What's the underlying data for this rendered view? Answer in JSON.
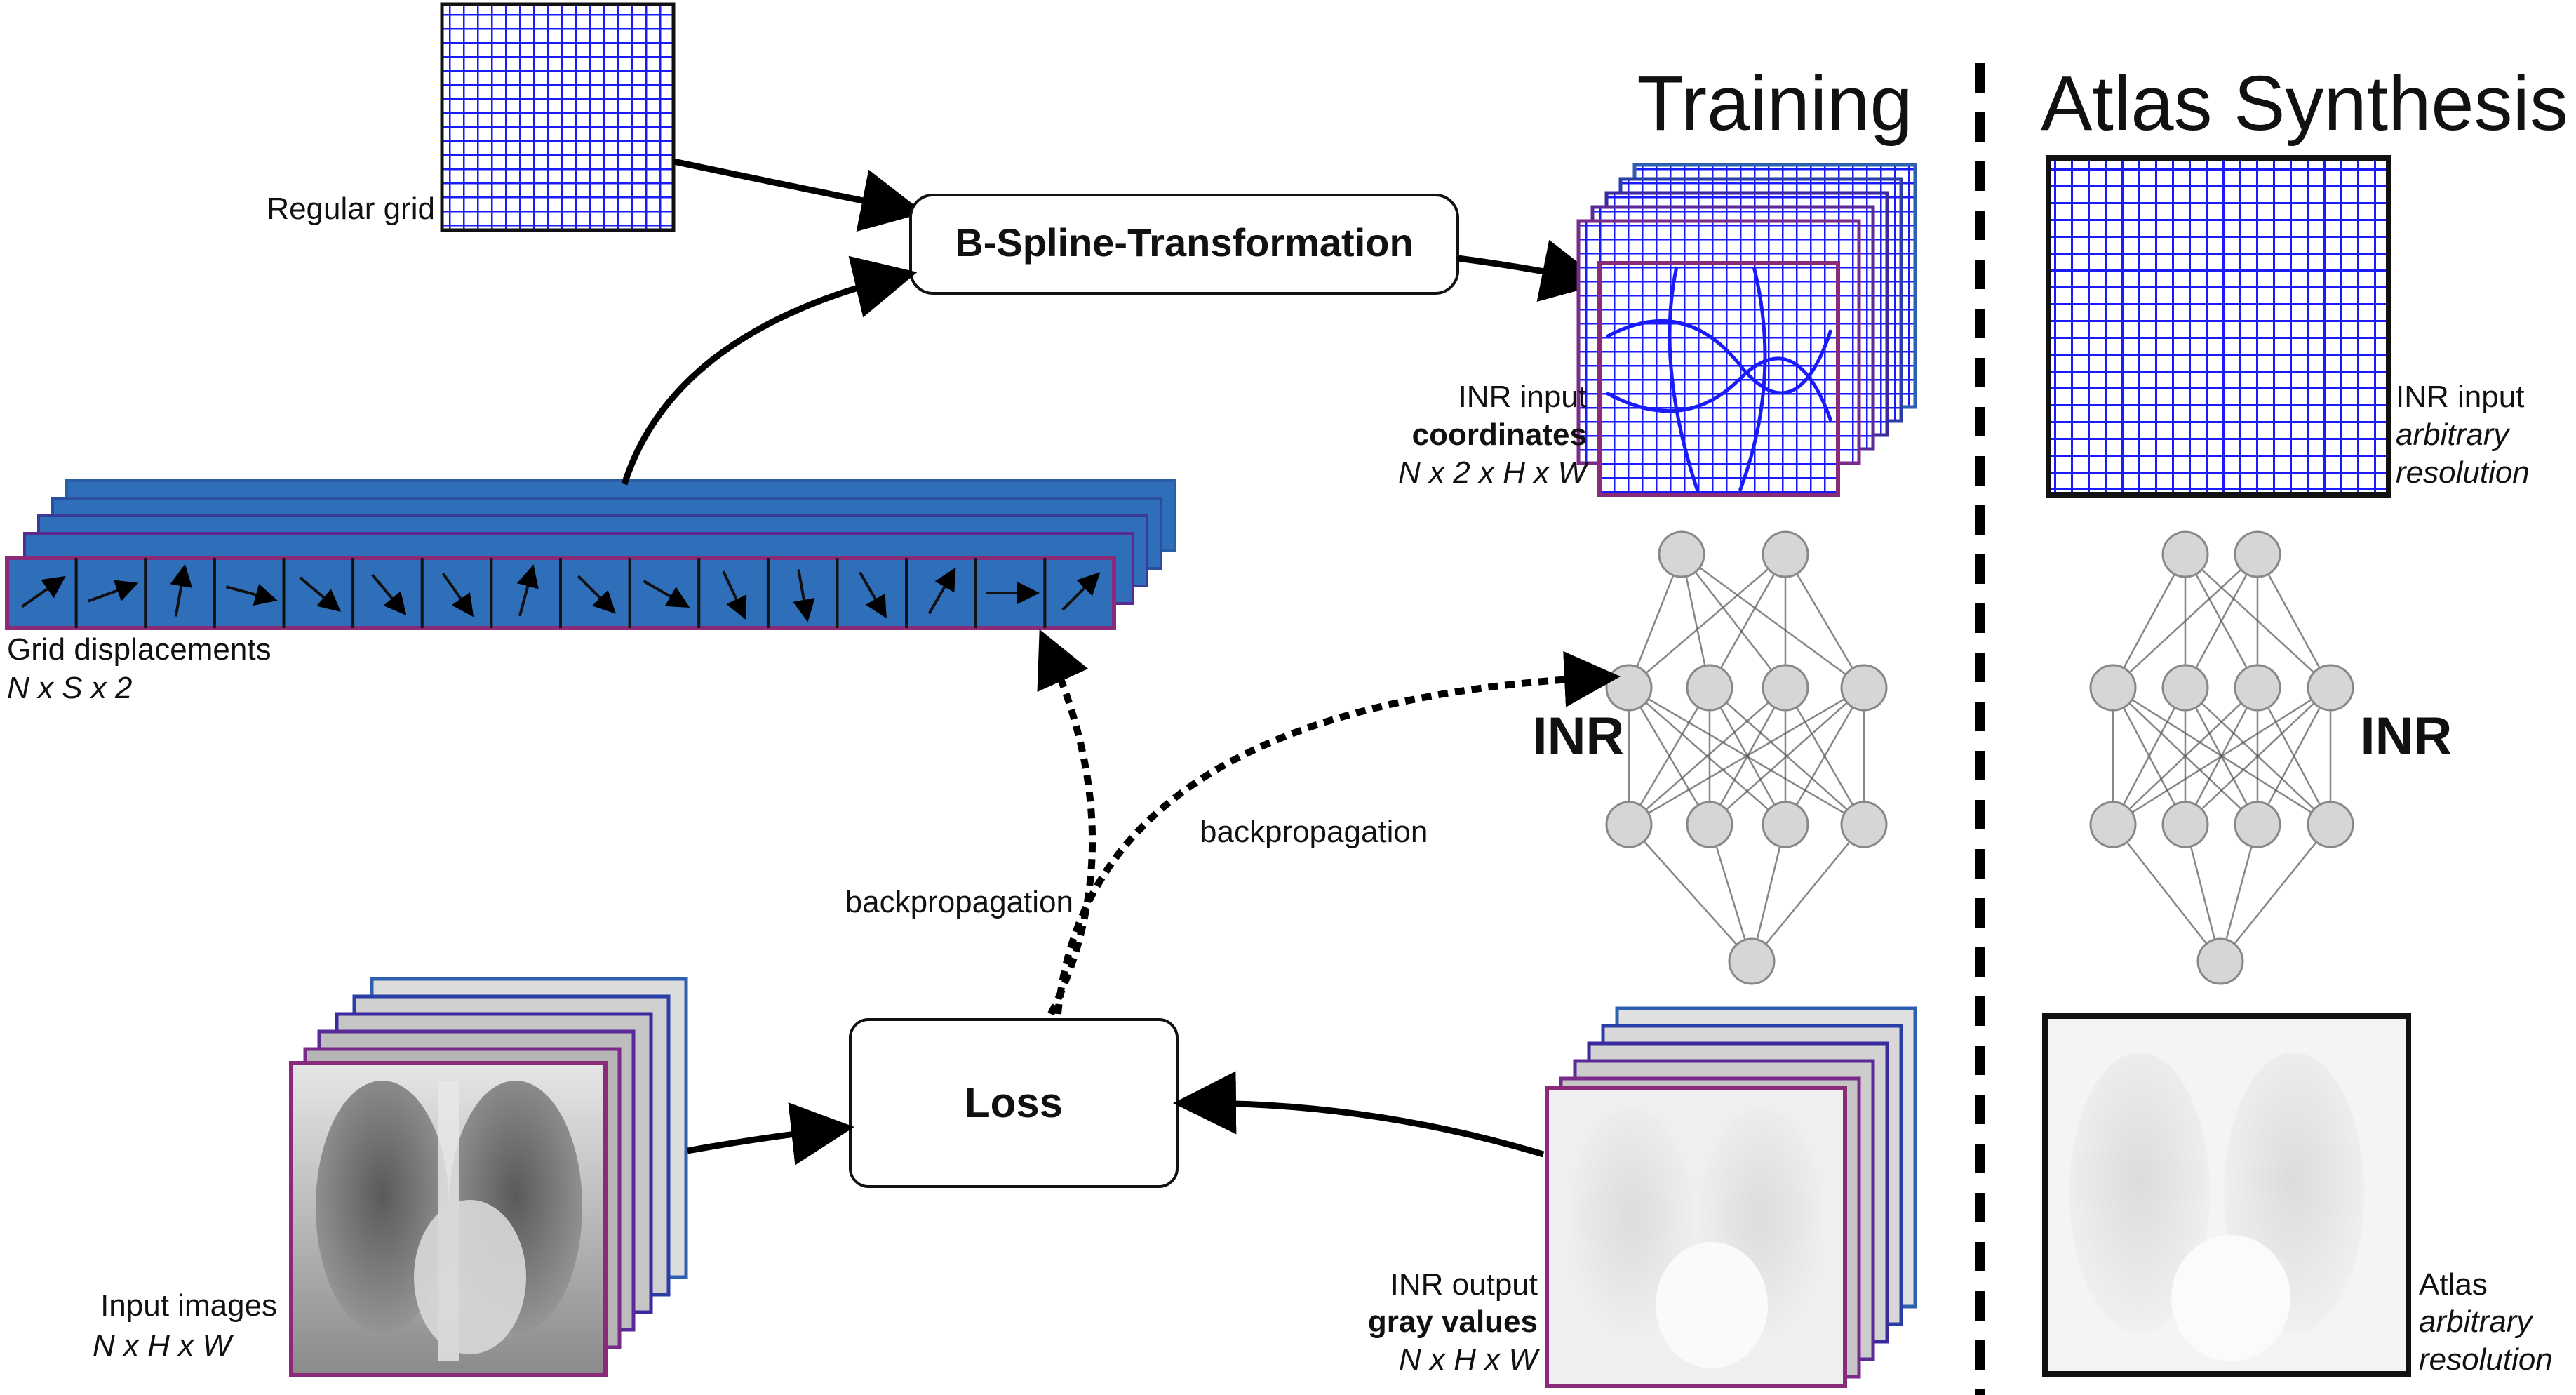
{
  "headings": {
    "training": "Training",
    "atlas_synthesis": "Atlas Synthesis"
  },
  "boxes": {
    "bspline": "B-Spline-Transformation",
    "loss": "Loss"
  },
  "labels": {
    "regular_grid": "Regular grid",
    "grid_displacements": "Grid displacements",
    "grid_displacements_dims": "N x S x 2",
    "inr_input": "INR input",
    "inr_input_coordinates": "coordinates",
    "inr_input_dims": "N x 2 x H x W",
    "inr_label": "INR",
    "inr_label_atlas": "INR",
    "backprop_left": "backpropagation",
    "backprop_right": "backpropagation",
    "input_images": "Input images",
    "input_images_dims": "N x H x W",
    "inr_output": "INR output",
    "inr_output_gray": "gray values",
    "inr_output_dims": "N x H x W",
    "atlas_inr_input": "INR input",
    "atlas_inr_arbitrary": "arbitrary",
    "atlas_inr_resolution": "resolution",
    "atlas": "Atlas",
    "atlas_arbitrary": "arbitrary",
    "atlas_resolution": "resolution"
  },
  "colors": {
    "grid_blue": "#1a1aff",
    "displacement_blue": "#2f6fba",
    "frame_purple": "#8a2a78",
    "node_gray": "#d6d6d6"
  }
}
